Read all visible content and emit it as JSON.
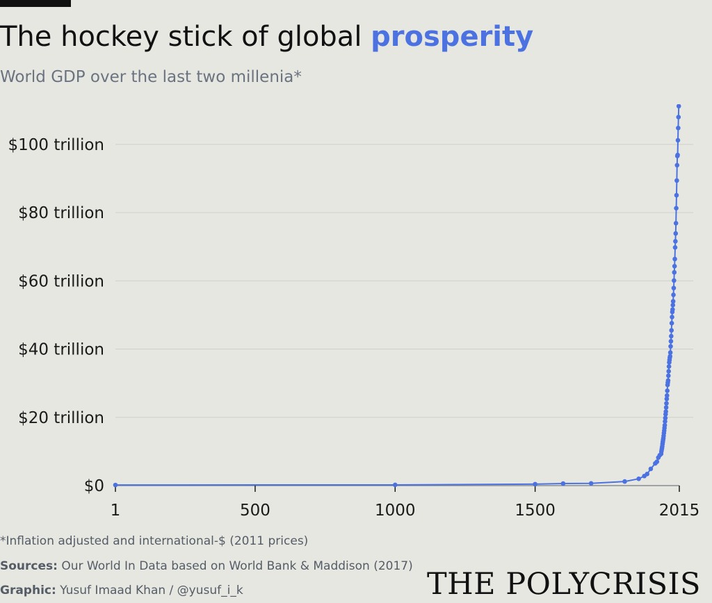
{
  "header": {
    "title_main": "The hockey stick of global",
    "title_highlight": "prosperity",
    "subtitle": "World GDP over the last two millenia*"
  },
  "colors": {
    "background": "#e6e7e1",
    "accent": "#4b72e0",
    "text": "#111111",
    "muted": "#6b7380"
  },
  "footer": {
    "note": "*Inflation adjusted and international-$ (2011 prices)",
    "sources_label": "Sources:",
    "sources_text": "Our World In Data based on World Bank & Maddison (2017)",
    "graphic_label": "Graphic:",
    "graphic_text": "Yusuf Imaad Khan / @yusuf_i_k",
    "brand": "THE POLYCRISIS"
  },
  "chart_data": {
    "type": "line",
    "title": "The hockey stick of global prosperity",
    "subtitle": "World GDP over the last two millenia*",
    "xlabel": "",
    "ylabel": "World GDP (international-$, 2011 prices)",
    "xlim": [
      1,
      2015
    ],
    "ylim": [
      0,
      110
    ],
    "grid": true,
    "y_unit": "trillion",
    "yticks": [
      {
        "value": 0,
        "label": "$0"
      },
      {
        "value": 20,
        "label": "$20 trillion"
      },
      {
        "value": 40,
        "label": "$40 trillion"
      },
      {
        "value": 60,
        "label": "$60 trillion"
      },
      {
        "value": 80,
        "label": "$80 trillion"
      },
      {
        "value": 100,
        "label": "$100 trillion"
      }
    ],
    "xticks": [
      {
        "value": 1,
        "label": "1"
      },
      {
        "value": 500,
        "label": "500"
      },
      {
        "value": 1000,
        "label": "1000"
      },
      {
        "value": 1500,
        "label": "1500"
      },
      {
        "value": 2015,
        "label": "2015"
      }
    ],
    "series": [
      {
        "name": "World GDP",
        "x": [
          1,
          1000,
          1500,
          1600,
          1700,
          1820,
          1870,
          1890,
          1900,
          1913,
          1929,
          1935,
          1940,
          1945,
          1950,
          1951,
          1952,
          1953,
          1954,
          1955,
          1956,
          1957,
          1958,
          1959,
          1960,
          1961,
          1962,
          1963,
          1964,
          1965,
          1966,
          1967,
          1968,
          1969,
          1970,
          1971,
          1972,
          1973,
          1974,
          1975,
          1976,
          1977,
          1978,
          1979,
          1980,
          1981,
          1982,
          1983,
          1984,
          1985,
          1986,
          1987,
          1988,
          1989,
          1990,
          1991,
          1992,
          1993,
          1994,
          1995,
          1996,
          1997,
          1998,
          1999,
          2000,
          2001,
          2002,
          2003,
          2004,
          2005,
          2006,
          2007,
          2008,
          2009,
          2010,
          2011,
          2012,
          2013,
          2014,
          2015
        ],
        "values": [
          0.18,
          0.21,
          0.43,
          0.6,
          0.65,
          1.2,
          2.0,
          2.8,
          3.4,
          4.9,
          6.5,
          7.0,
          8.2,
          8.9,
          9.3,
          10.0,
          10.5,
          11.0,
          11.5,
          12.2,
          12.8,
          13.4,
          13.9,
          14.6,
          15.4,
          16.1,
          16.9,
          17.7,
          18.8,
          19.8,
          20.9,
          21.7,
          22.9,
          24.1,
          25.4,
          26.4,
          27.8,
          29.5,
          30.2,
          30.8,
          32.2,
          33.5,
          34.9,
          36.1,
          36.8,
          37.5,
          37.9,
          39.0,
          40.8,
          42.3,
          43.8,
          45.5,
          47.6,
          49.4,
          50.9,
          51.6,
          52.9,
          54.0,
          55.9,
          57.9,
          60.1,
          62.5,
          64.3,
          66.4,
          69.8,
          71.6,
          73.9,
          76.9,
          81.3,
          85.1,
          89.4,
          93.9,
          96.6,
          96.9,
          101.2,
          104.8,
          108.0,
          111.2,
          114.3,
          117.6
        ]
      }
    ]
  }
}
